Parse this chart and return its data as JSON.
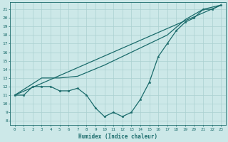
{
  "xlabel": "Humidex (Indice chaleur)",
  "background_color": "#cce8e8",
  "grid_color": "#aad0d0",
  "line_color": "#1a6b6b",
  "xlim": [
    -0.5,
    23.5
  ],
  "ylim": [
    7.5,
    21.8
  ],
  "xticks": [
    0,
    1,
    2,
    3,
    4,
    5,
    6,
    7,
    8,
    9,
    10,
    11,
    12,
    13,
    14,
    15,
    16,
    17,
    18,
    19,
    20,
    21,
    22,
    23
  ],
  "yticks": [
    8,
    9,
    10,
    11,
    12,
    13,
    14,
    15,
    16,
    17,
    18,
    19,
    20,
    21
  ],
  "line1_x": [
    0,
    1,
    2,
    3,
    4,
    5,
    6,
    7,
    8,
    9,
    10,
    11,
    12,
    13,
    14,
    15,
    16,
    17,
    18,
    19,
    20,
    21,
    22,
    23
  ],
  "line1_y": [
    11.0,
    11.0,
    12.0,
    12.0,
    12.0,
    11.5,
    11.5,
    11.8,
    11.0,
    9.5,
    8.5,
    9.0,
    8.5,
    9.0,
    10.5,
    12.5,
    15.5,
    17.0,
    18.5,
    19.5,
    20.0,
    21.0,
    21.0,
    21.5
  ],
  "line2_x": [
    0,
    23
  ],
  "line2_y": [
    11.0,
    21.5
  ],
  "line3_x": [
    0,
    3,
    5,
    7,
    10,
    14,
    17,
    19,
    21,
    23
  ],
  "line3_y": [
    11.0,
    13.0,
    13.0,
    13.2,
    14.5,
    16.5,
    18.0,
    19.8,
    21.0,
    21.5
  ]
}
